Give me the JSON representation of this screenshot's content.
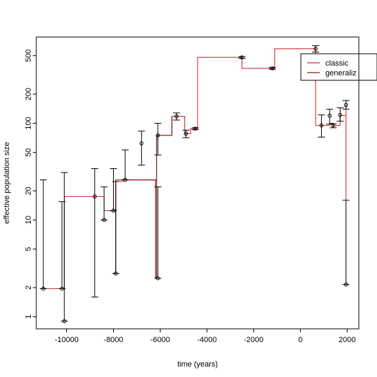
{
  "chart_data": {
    "type": "line",
    "xlabel": "time (years)",
    "ylabel": "effective population size",
    "x_scale": "linear",
    "y_scale": "log",
    "xlim": [
      -11300,
      2500
    ],
    "ylim": [
      0.75,
      780
    ],
    "x_ticks": [
      -10000,
      -8000,
      -6000,
      -4000,
      -2000,
      0,
      2000
    ],
    "x_tick_labels": [
      "-10000",
      "-8000",
      "-6000",
      "-4000",
      "-2000",
      "0",
      "2000"
    ],
    "y_ticks": [
      1,
      2,
      5,
      10,
      20,
      50,
      100,
      200,
      500
    ],
    "y_tick_labels": [
      "1",
      "2",
      "5",
      "10",
      "20",
      "50",
      "100",
      "200",
      "500"
    ],
    "legend": {
      "position": "top-right",
      "entries": [
        {
          "label": "classic",
          "color": "#cc3333"
        },
        {
          "label": "generaliz",
          "color": "#7a1a1a"
        }
      ]
    },
    "series": [
      {
        "name": "classic",
        "color": "#cc3333",
        "style": "step",
        "x": [
          -11100,
          -10250,
          -10100,
          -8850,
          -8400,
          -8000,
          -7900,
          -7600,
          -6850,
          -6150,
          -5500,
          -5350,
          -4950,
          -4700,
          -4400,
          -2500,
          -2500,
          -1200,
          -1100,
          650,
          650,
          900,
          1250,
          1400,
          1700,
          1950,
          1950
        ],
        "y": [
          1.95,
          1.95,
          17.5,
          17.5,
          12.5,
          12.5,
          25,
          26,
          26,
          75,
          118,
          118,
          78,
          88,
          480,
          480,
          370,
          370,
          590,
          590,
          95,
          95,
          100,
          95,
          120,
          155,
          16
        ]
      },
      {
        "name": "generaliz",
        "color": "#7a1a1a",
        "style": "step",
        "x": [
          -8000,
          -7900,
          -6200,
          -6150,
          -5500
        ],
        "y": [
          2.8,
          26,
          2.5,
          75,
          118
        ]
      }
    ],
    "points": [
      {
        "x": -11000,
        "y": 1.95,
        "lo": 1.95,
        "hi": 26
      },
      {
        "x": -10100,
        "y": 0.9,
        "lo": 0.9,
        "hi": 31
      },
      {
        "x": -10200,
        "y": 1.95,
        "lo": 1.95,
        "hi": 15.5
      },
      {
        "x": -8800,
        "y": 17.5,
        "lo": 1.6,
        "hi": 34
      },
      {
        "x": -8400,
        "y": 10,
        "lo": 10,
        "hi": 22
      },
      {
        "x": -8000,
        "y": 12.5,
        "lo": 12.5,
        "hi": 34
      },
      {
        "x": -7900,
        "y": 2.8,
        "lo": 2.8,
        "hi": 25
      },
      {
        "x": -7500,
        "y": 26,
        "lo": 26,
        "hi": 53
      },
      {
        "x": -6800,
        "y": 62,
        "lo": 37,
        "hi": 83
      },
      {
        "x": -6100,
        "y": 75,
        "lo": 47,
        "hi": 100
      },
      {
        "x": -6100,
        "y": 2.5,
        "lo": 2.5,
        "hi": 22
      },
      {
        "x": -5300,
        "y": 118,
        "lo": 108,
        "hi": 128
      },
      {
        "x": -4900,
        "y": 78,
        "lo": 71,
        "hi": 85
      },
      {
        "x": -4500,
        "y": 88,
        "lo": 86,
        "hi": 90
      },
      {
        "x": -2500,
        "y": 480,
        "lo": 470,
        "hi": 490
      },
      {
        "x": -1200,
        "y": 370,
        "lo": 362,
        "hi": 378
      },
      {
        "x": 650,
        "y": 590,
        "lo": 545,
        "hi": 635
      },
      {
        "x": 900,
        "y": 95,
        "lo": 72,
        "hi": 122
      },
      {
        "x": 1250,
        "y": 120,
        "lo": 98,
        "hi": 140
      },
      {
        "x": 1400,
        "y": 95,
        "lo": 90,
        "hi": 99
      },
      {
        "x": 1700,
        "y": 122,
        "lo": 105,
        "hi": 145
      },
      {
        "x": 1950,
        "y": 155,
        "lo": 140,
        "hi": 172
      },
      {
        "x": 1950,
        "y": 2.15,
        "lo": 2.15,
        "hi": 16
      }
    ]
  }
}
